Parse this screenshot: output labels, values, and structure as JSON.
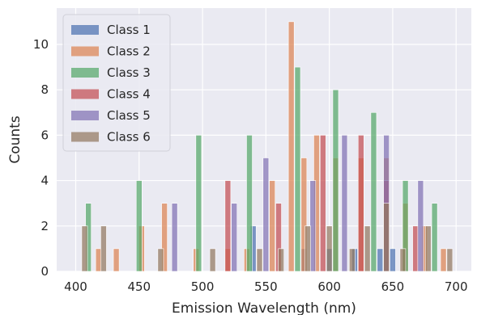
{
  "chart_data": {
    "type": "bar",
    "xlabel": "Emission Wavelength (nm)",
    "ylabel": "Counts",
    "xlim": [
      385,
      712
    ],
    "ylim": [
      0,
      11.6
    ],
    "xticks": [
      400,
      450,
      500,
      550,
      600,
      650,
      700
    ],
    "yticks": [
      0,
      2,
      4,
      6,
      8,
      10
    ],
    "grid": true,
    "legend": "upper left",
    "background": "#eaeaf2",
    "series": [
      {
        "name": "Class 1",
        "color": "#4c72b0",
        "bars": [
          [
            540,
            2
          ],
          [
            580,
            1
          ],
          [
            600,
            1
          ],
          [
            620,
            1
          ],
          [
            640,
            1
          ],
          [
            650,
            1
          ],
          [
            660,
            1
          ]
        ]
      },
      {
        "name": "Class 2",
        "color": "#dd8452",
        "bars": [
          [
            418,
            1
          ],
          [
            432,
            1
          ],
          [
            452,
            2
          ],
          [
            470,
            3
          ],
          [
            495,
            1
          ],
          [
            520,
            1
          ],
          [
            535,
            1
          ],
          [
            555,
            4
          ],
          [
            570,
            11
          ],
          [
            580,
            5
          ],
          [
            590,
            6
          ],
          [
            605,
            5
          ],
          [
            625,
            5
          ],
          [
            645,
            5
          ],
          [
            660,
            3
          ],
          [
            675,
            2
          ],
          [
            690,
            1
          ]
        ]
      },
      {
        "name": "Class 3",
        "color": "#55a868",
        "bars": [
          [
            410,
            3
          ],
          [
            450,
            4
          ],
          [
            497,
            6
          ],
          [
            537,
            6
          ],
          [
            575,
            9
          ],
          [
            605,
            8
          ],
          [
            635,
            7
          ],
          [
            660,
            4
          ],
          [
            683,
            3
          ]
        ]
      },
      {
        "name": "Class 4",
        "color": "#c44e52",
        "bars": [
          [
            520,
            4
          ],
          [
            560,
            3
          ],
          [
            595,
            6
          ],
          [
            625,
            6
          ],
          [
            645,
            4
          ],
          [
            668,
            2
          ]
        ]
      },
      {
        "name": "Class 5",
        "color": "#8172b3",
        "bars": [
          [
            478,
            3
          ],
          [
            525,
            3
          ],
          [
            550,
            5
          ],
          [
            587,
            4
          ],
          [
            612,
            6
          ],
          [
            645,
            6
          ],
          [
            672,
            4
          ]
        ]
      },
      {
        "name": "Class 6",
        "color": "#937860",
        "bars": [
          [
            407,
            2
          ],
          [
            422,
            2
          ],
          [
            467,
            1
          ],
          [
            508,
            1
          ],
          [
            545,
            1
          ],
          [
            562,
            1
          ],
          [
            583,
            2
          ],
          [
            600,
            2
          ],
          [
            618,
            1
          ],
          [
            630,
            2
          ],
          [
            645,
            3
          ],
          [
            658,
            1
          ],
          [
            678,
            2
          ],
          [
            695,
            1
          ]
        ]
      }
    ]
  }
}
